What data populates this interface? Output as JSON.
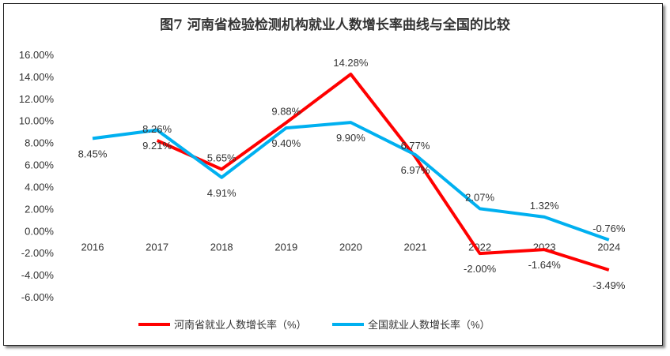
{
  "chart_data": {
    "type": "line",
    "title": "图7  河南省检验检测机构就业人数增长率曲线与全国的比较",
    "categories": [
      "2016",
      "2017",
      "2018",
      "2019",
      "2020",
      "2021",
      "2022",
      "2023",
      "2024"
    ],
    "ylim": [
      -6,
      16
    ],
    "yticks": [
      "16.00%",
      "14.00%",
      "12.00%",
      "10.00%",
      "8.00%",
      "6.00%",
      "4.00%",
      "2.00%",
      "0.00%",
      "-2.00%",
      "-4.00%",
      "-6.00%"
    ],
    "grid": false,
    "legend": "bottom",
    "series": [
      {
        "name": "河南省就业人数增长率（%）",
        "color": "#FF0000",
        "values": [
          null,
          8.26,
          5.65,
          9.88,
          14.28,
          6.77,
          -2.0,
          -1.64,
          -3.49
        ],
        "labels": [
          "",
          "8.26%",
          "5.65%",
          "9.88%",
          "14.28%",
          "6.77%",
          "-2.00%",
          "-1.64%",
          "-3.49%"
        ]
      },
      {
        "name": "全国就业人数增长率（%）",
        "color": "#00B0F0",
        "values": [
          8.45,
          9.21,
          4.91,
          9.4,
          9.9,
          6.97,
          2.07,
          1.32,
          -0.76
        ],
        "labels": [
          "8.45%",
          "9.21%",
          "4.91%",
          "9.40%",
          "9.90%",
          "6.97%",
          "2.07%",
          "1.32%",
          "-0.76%"
        ]
      }
    ]
  }
}
